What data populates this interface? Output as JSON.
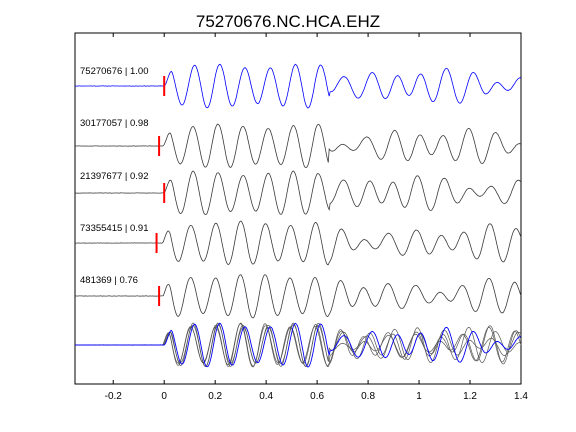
{
  "chart_data": {
    "type": "line",
    "title": "75270676.NC.HCA.EHZ",
    "xlabel": "",
    "ylabel": "",
    "xlim": [
      -0.35,
      1.4
    ],
    "xticks": [
      {
        "value": -0.2,
        "label": "-0.2"
      },
      {
        "value": 0,
        "label": "0"
      },
      {
        "value": 0.2,
        "label": "0.2"
      },
      {
        "value": 0.4,
        "label": "0.4"
      },
      {
        "value": 0.6,
        "label": "0.6"
      },
      {
        "value": 0.8,
        "label": "0.8"
      },
      {
        "value": 1.0,
        "label": "1"
      },
      {
        "value": 1.2,
        "label": "1.2"
      },
      {
        "value": 1.4,
        "label": "1.4"
      }
    ],
    "grid": false,
    "colors": {
      "reference": "#0000ff",
      "trace": "#3a3a3a",
      "pick": "#ff0000",
      "axes": "#000000"
    },
    "traces": [
      {
        "label": "75270676 | 1.00",
        "event_id": "75270676",
        "correlation": 1.0,
        "pick_time": 0.0,
        "color": "#0000ff"
      },
      {
        "label": "30177057 | 0.98",
        "event_id": "30177057",
        "correlation": 0.98,
        "pick_time": -0.02,
        "color": "#3a3a3a"
      },
      {
        "label": "21397677 | 0.92",
        "event_id": "21397677",
        "correlation": 0.92,
        "pick_time": 0.0,
        "color": "#3a3a3a"
      },
      {
        "label": "73355415 | 0.91",
        "event_id": "73355415",
        "correlation": 0.91,
        "pick_time": -0.03,
        "color": "#3a3a3a"
      },
      {
        "label": "481369 | 0.76",
        "event_id": "481369",
        "correlation": 0.76,
        "pick_time": -0.02,
        "color": "#3a3a3a"
      }
    ],
    "stack": {
      "description": "overlay of all traces",
      "reference_color": "#0000ff",
      "trace_color": "#555555"
    }
  }
}
